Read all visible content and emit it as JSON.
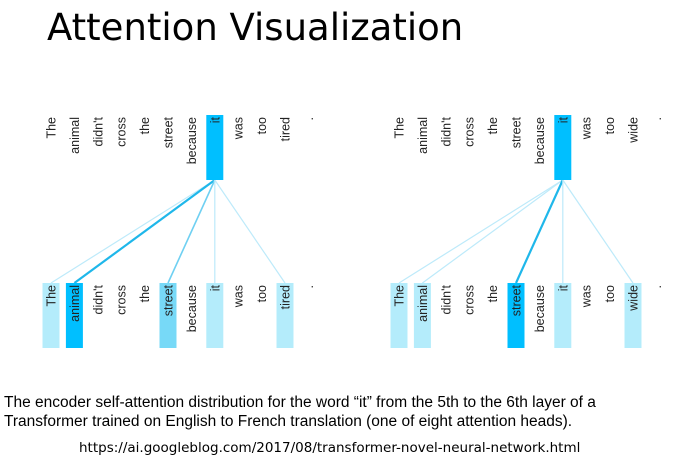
{
  "title": "Attention Visualization",
  "colors": {
    "strong": "#00bfff",
    "medium": "#77d9f7",
    "light": "#b4ecfb",
    "faint": "#dcf6fd",
    "text": "#222222"
  },
  "panels": [
    {
      "query_index": 5,
      "top_tokens": [
        "The",
        "animal",
        "didn't",
        "cross",
        "the",
        "street",
        "because",
        "it",
        "was",
        "too",
        "tired",
        "."
      ],
      "bottom_tokens": [
        "The",
        "animal",
        "didn't",
        "cross",
        "the",
        "street",
        "because",
        "it",
        "was",
        "too",
        "tired",
        "."
      ],
      "top_highlight": [
        0,
        0,
        0,
        0,
        0,
        0,
        0,
        1,
        0,
        0,
        0,
        0
      ],
      "attention": [
        0.25,
        1.0,
        0,
        0,
        0,
        0.55,
        0,
        0.25,
        0,
        0,
        0.25,
        0
      ]
    },
    {
      "query_index": 5,
      "top_tokens": [
        "The",
        "animal",
        "didn't",
        "cross",
        "the",
        "street",
        "because",
        "it",
        "was",
        "too",
        "wide",
        "."
      ],
      "bottom_tokens": [
        "The",
        "animal",
        "didn't",
        "cross",
        "the",
        "street",
        "because",
        "it",
        "was",
        "too",
        "wide",
        "."
      ],
      "top_highlight": [
        0,
        0,
        0,
        0,
        0,
        0,
        0,
        1,
        0,
        0,
        0,
        0
      ],
      "attention": [
        0.2,
        0.45,
        0,
        0,
        0,
        1.0,
        0,
        0.2,
        0,
        0,
        0.25,
        0
      ]
    }
  ],
  "caption_line1": "The encoder self-attention distribution for the word “it” from the 5th to the 6th layer of a",
  "caption_line2": "Transformer trained on English to French translation (one of eight attention heads).",
  "source_url": "https://ai.googleblog.com/2017/08/transformer-novel-neural-network.html"
}
